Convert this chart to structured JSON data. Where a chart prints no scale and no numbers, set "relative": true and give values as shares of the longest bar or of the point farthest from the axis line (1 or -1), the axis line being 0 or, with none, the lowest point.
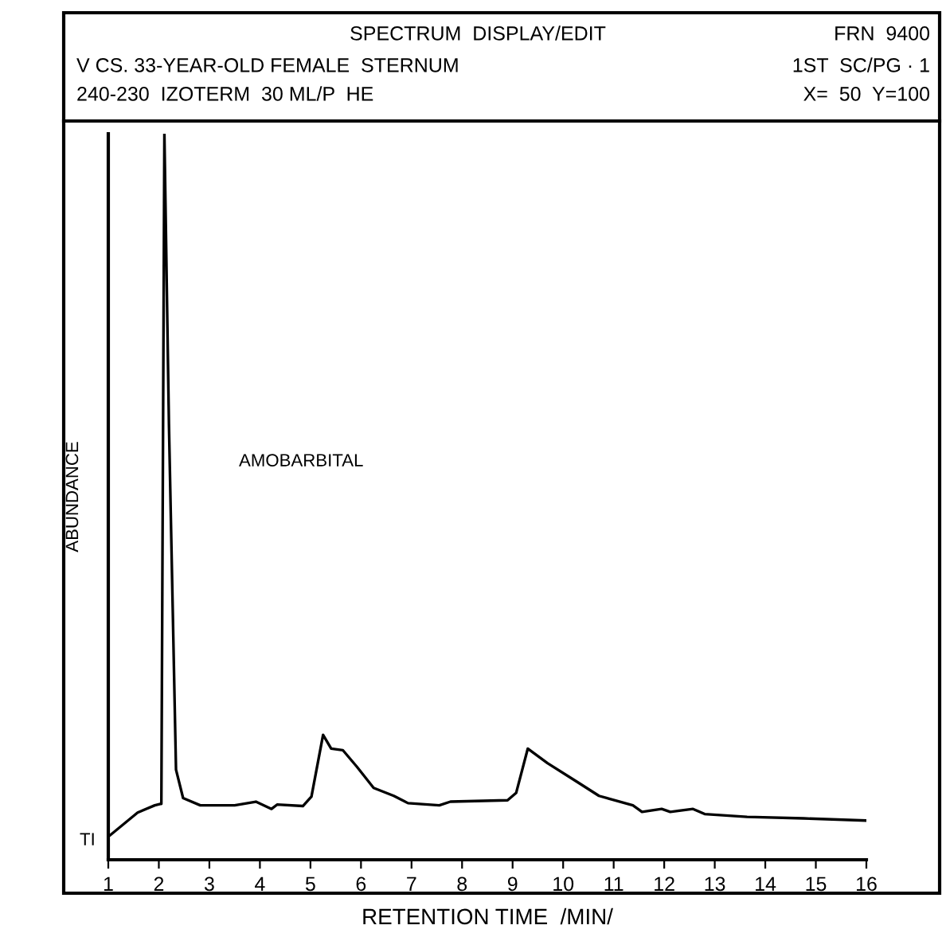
{
  "chart_data": {
    "type": "line",
    "relative": true,
    "title": "SPECTRUM  DISPLAY/EDIT",
    "xlabel": "RETENTION TIME  /MIN/",
    "ylabel": "ABUNDANCE",
    "annotations": [
      "V CS. 33-YEAR-OLD FEMALE  STERNUM",
      "240-230  IZOTERM  30 ML/P  HE",
      "FRN  9400",
      "1ST  SC/PG · 1",
      "X=  50  Y=100",
      "TI",
      "AMOBARBITAL"
    ],
    "xlim": [
      1,
      16
    ],
    "xticks": [
      1,
      2,
      3,
      4,
      5,
      6,
      7,
      8,
      9,
      10,
      11,
      12,
      13,
      14,
      15,
      16
    ],
    "series": [
      {
        "color": "#000000",
        "x": [
          1.04,
          1.58,
          1.92,
          2.03,
          2.05,
          2.11,
          2.2,
          2.34,
          2.48,
          2.82,
          3.5,
          3.92,
          4.23,
          4.34,
          4.85,
          5.02,
          5.25,
          5.41,
          5.64,
          5.92,
          6.25,
          6.65,
          6.93,
          7.55,
          7.77,
          8.9,
          9.07,
          9.3,
          9.69,
          10.26,
          10.71,
          11.38,
          11.56,
          11.95,
          12.12,
          12.57,
          12.8,
          13.64,
          14.76,
          16.0
        ],
        "values": [
          0.034,
          0.065,
          0.075,
          0.077,
          0.077,
          1.0,
          0.6,
          0.124,
          0.085,
          0.075,
          0.075,
          0.08,
          0.07,
          0.076,
          0.074,
          0.087,
          0.172,
          0.153,
          0.151,
          0.128,
          0.099,
          0.088,
          0.078,
          0.075,
          0.08,
          0.082,
          0.092,
          0.153,
          0.133,
          0.108,
          0.088,
          0.075,
          0.066,
          0.07,
          0.066,
          0.07,
          0.063,
          0.059,
          0.057,
          0.054
        ]
      }
    ],
    "grid": false
  }
}
